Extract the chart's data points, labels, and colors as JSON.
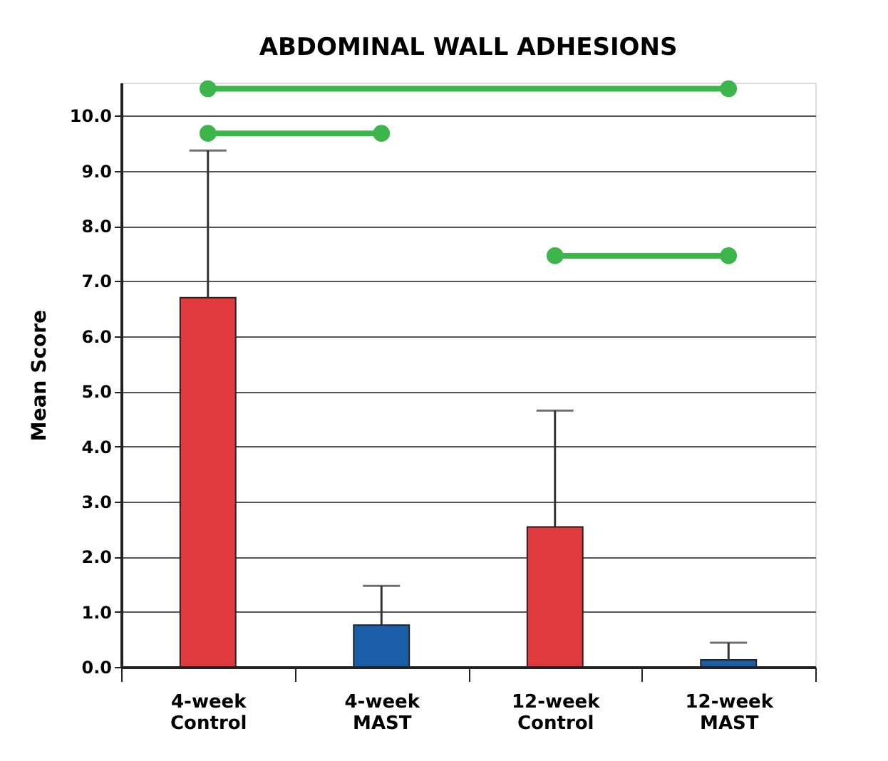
{
  "chart_data": {
    "type": "bar",
    "title": "ABDOMINAL WALL ADHESIONS",
    "ylabel": "Mean Score",
    "categories": [
      "4-week Control",
      "4-week MAST",
      "12-week Control",
      "12-week MAST"
    ],
    "series": [
      {
        "values": [
          6.7,
          0.76,
          2.54,
          0.13
        ],
        "colors": [
          "#e03a3e",
          "#1a5ea8",
          "#e03a3e",
          "#1a5ea8"
        ],
        "errors": [
          [
            6.7,
            9.37
          ],
          [
            0.76,
            1.47
          ],
          [
            2.54,
            4.65
          ],
          [
            0.13,
            0.44
          ]
        ]
      },
      {
        "type": "line",
        "color": "#3cb54a",
        "x": [
          "4-week Control",
          "12-week MAST"
        ],
        "values": [
          10.49,
          10.49
        ]
      },
      {
        "type": "line",
        "color": "#3cb54a",
        "x": [
          "4-week Control",
          "4-week MAST"
        ],
        "values": [
          9.68,
          9.68
        ]
      },
      {
        "type": "line",
        "color": "#3cb54a",
        "x": [
          "12-week Control",
          "12-week MAST"
        ],
        "values": [
          7.46,
          7.46
        ]
      }
    ],
    "marker": "circle",
    "ylim": [
      0,
      10.6
    ],
    "yticks": [
      {
        "value": 0,
        "label": "0.0"
      },
      {
        "value": 1,
        "label": "1.0"
      },
      {
        "value": 2,
        "label": "2.0"
      },
      {
        "value": 3,
        "label": "3.0"
      },
      {
        "value": 4,
        "label": "4.0"
      },
      {
        "value": 5,
        "label": "5.0"
      },
      {
        "value": 6,
        "label": "6.0"
      },
      {
        "value": 7,
        "label": "7.0"
      },
      {
        "value": 8,
        "label": "8.0"
      },
      {
        "value": 9,
        "label": "9.0"
      },
      {
        "value": 10,
        "label": "10.0"
      }
    ],
    "grid": "y"
  }
}
